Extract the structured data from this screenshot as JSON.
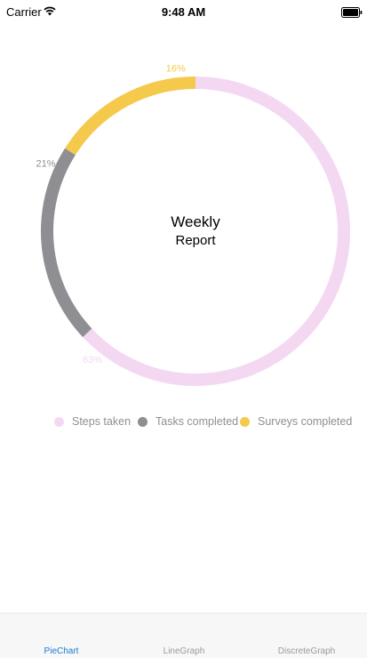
{
  "status_bar": {
    "carrier": "Carrier",
    "time": "9:48 AM"
  },
  "report": {
    "title": "Weekly",
    "subtitle": "Report"
  },
  "chart_data": {
    "type": "pie",
    "title": "",
    "slices": [
      {
        "name": "Steps taken",
        "value": 63,
        "label": "63%",
        "color": "#f4d8f2"
      },
      {
        "name": "Tasks completed",
        "value": 21,
        "label": "21%",
        "color": "#8e8e93"
      },
      {
        "name": "Surveys completed",
        "value": 16,
        "label": "16%",
        "color": "#f5c94c"
      }
    ],
    "legend": "bottom"
  },
  "legend": {
    "items": [
      {
        "label": "Steps taken",
        "color": "#f4d8f2"
      },
      {
        "label": "Tasks completed",
        "color": "#8e8e93"
      },
      {
        "label": "Surveys completed",
        "color": "#f5c94c"
      }
    ]
  },
  "tabs": [
    {
      "label": "PieChart",
      "active": true,
      "color": "#1a7bd4"
    },
    {
      "label": "LineGraph",
      "active": false,
      "color": "#9a9a9a"
    },
    {
      "label": "DiscreteGraph",
      "active": false,
      "color": "#9a9a9a"
    }
  ]
}
